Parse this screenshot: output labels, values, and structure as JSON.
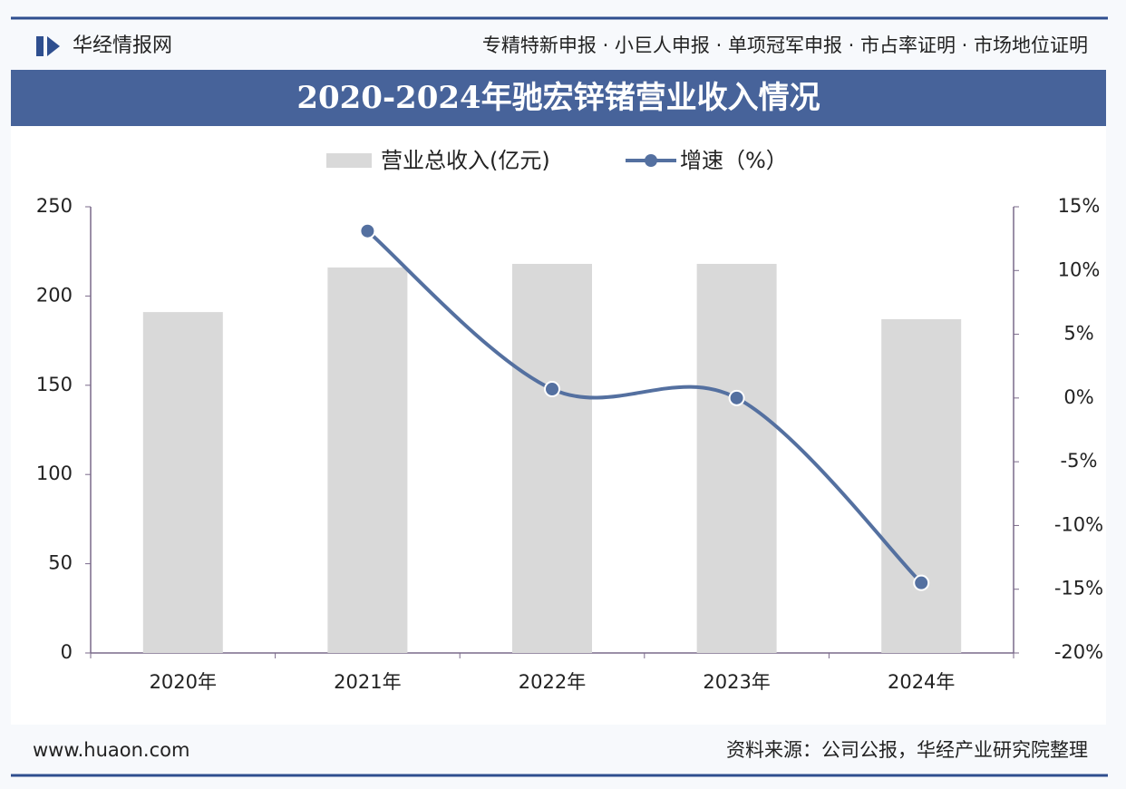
{
  "header": {
    "brand": "华经情报网",
    "services": "专精特新申报 · 小巨人申报 · 单项冠军申报 · 市占率证明 · 市场地位证明"
  },
  "footer": {
    "site": "www.huaon.com",
    "source": "资料来源：公司公报，华经产业研究院整理"
  },
  "chart_data": {
    "type": "bar_line",
    "title": "2020-2024年驰宏锌锗营业收入情况",
    "categories": [
      "2020年",
      "2021年",
      "2022年",
      "2023年",
      "2024年"
    ],
    "series": [
      {
        "name": "营业总收入(亿元)",
        "type": "bar",
        "color": "#d9d9d9",
        "values": [
          191,
          216,
          218,
          218,
          187
        ]
      },
      {
        "name": "增速（%）",
        "type": "line",
        "axis": "y2",
        "color": "#5470a0",
        "values": [
          null,
          13.1,
          0.7,
          0.0,
          -14.5
        ]
      }
    ],
    "ylim": [
      0,
      250
    ],
    "yticks": [
      0,
      50,
      100,
      150,
      200,
      250
    ],
    "y2lim": [
      -20,
      15
    ],
    "y2ticks": [
      {
        "value": -20,
        "label": "-20%"
      },
      {
        "value": -15,
        "label": "-15%"
      },
      {
        "value": -10,
        "label": "-10%"
      },
      {
        "value": -5,
        "label": "-5%"
      },
      {
        "value": 0,
        "label": "0%"
      },
      {
        "value": 5,
        "label": "5%"
      },
      {
        "value": 10,
        "label": "10%"
      },
      {
        "value": 15,
        "label": "15%"
      }
    ]
  }
}
